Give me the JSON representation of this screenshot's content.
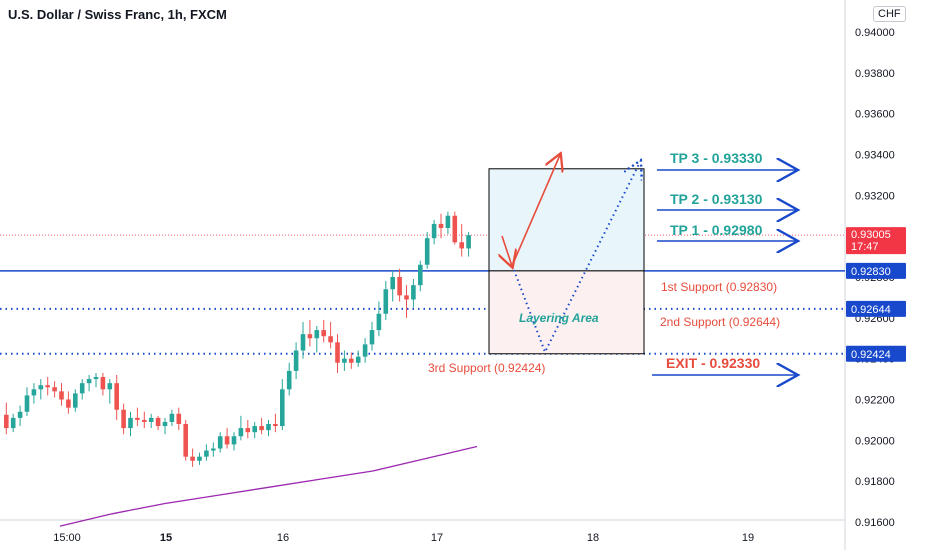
{
  "chart_data": {
    "type": "candlestick",
    "title": "U.S. Dollar / Swiss Franc, 1h, FXCM",
    "currency": "CHF",
    "ylim": [
      0.916,
      0.941
    ],
    "y_ticks": [
      "0.94000",
      "0.93800",
      "0.93600",
      "0.93400",
      "0.93200",
      "0.93000",
      "0.92800",
      "0.92600",
      "0.92400",
      "0.92200",
      "0.92000",
      "0.91800",
      "0.91600"
    ],
    "x_ticks": [
      "15:00",
      "15",
      "16",
      "17",
      "18",
      "19"
    ],
    "price": {
      "label": "0.93005",
      "countdown": "17:47",
      "value": 0.93005
    },
    "levels": [
      {
        "value": 0.9283,
        "label": "0.92830",
        "style": "solid"
      },
      {
        "value": 0.92644,
        "label": "0.92644",
        "style": "dotted"
      },
      {
        "value": 0.92424,
        "label": "0.92424",
        "style": "dotted"
      }
    ],
    "annotations": {
      "tp3": "TP 3 - 0.93330",
      "tp2": "TP 2 - 0.93130",
      "tp1": "TP 1 - 0.92980",
      "exit": "EXIT - 0.92330",
      "support1": "1st Support (0.92830)",
      "support2": "2nd Support (0.92644)",
      "support3": "3rd Support  (0.92424)",
      "layering": "Layering Area"
    },
    "moving_average": [
      0.9158,
      0.9164,
      0.9169,
      0.9173,
      0.9177,
      0.9181,
      0.9185,
      0.9191,
      0.9197
    ],
    "candles": [
      [
        0.92125,
        0.92185,
        0.9203,
        0.9206
      ],
      [
        0.9206,
        0.9213,
        0.9204,
        0.9211
      ],
      [
        0.9211,
        0.9217,
        0.9207,
        0.9214
      ],
      [
        0.9214,
        0.9226,
        0.9212,
        0.9222
      ],
      [
        0.9222,
        0.9228,
        0.9218,
        0.9225
      ],
      [
        0.9225,
        0.923,
        0.922,
        0.9227
      ],
      [
        0.9227,
        0.9231,
        0.9222,
        0.9226
      ],
      [
        0.9226,
        0.9229,
        0.9221,
        0.9224
      ],
      [
        0.9224,
        0.9228,
        0.9217,
        0.922
      ],
      [
        0.922,
        0.9224,
        0.9213,
        0.9216
      ],
      [
        0.9216,
        0.9225,
        0.9214,
        0.9223
      ],
      [
        0.9223,
        0.923,
        0.922,
        0.9228
      ],
      [
        0.9228,
        0.9232,
        0.9224,
        0.923
      ],
      [
        0.923,
        0.9233,
        0.9226,
        0.9231
      ],
      [
        0.9231,
        0.9233,
        0.9222,
        0.9225
      ],
      [
        0.9225,
        0.923,
        0.9218,
        0.9228
      ],
      [
        0.9228,
        0.9232,
        0.921,
        0.9215
      ],
      [
        0.9215,
        0.9218,
        0.9203,
        0.9206
      ],
      [
        0.9206,
        0.9214,
        0.9202,
        0.9211
      ],
      [
        0.9211,
        0.9216,
        0.9207,
        0.921
      ],
      [
        0.921,
        0.9214,
        0.9206,
        0.9209
      ],
      [
        0.9209,
        0.9213,
        0.9206,
        0.9211
      ],
      [
        0.9211,
        0.9212,
        0.9205,
        0.9207
      ],
      [
        0.9207,
        0.9211,
        0.9203,
        0.9209
      ],
      [
        0.9209,
        0.9215,
        0.9207,
        0.9213
      ],
      [
        0.9213,
        0.9216,
        0.9205,
        0.9208
      ],
      [
        0.9208,
        0.921,
        0.919,
        0.9192
      ],
      [
        0.9192,
        0.9196,
        0.9187,
        0.919
      ],
      [
        0.919,
        0.9194,
        0.9188,
        0.9192
      ],
      [
        0.9192,
        0.9198,
        0.919,
        0.9195
      ],
      [
        0.9195,
        0.9199,
        0.9192,
        0.9196
      ],
      [
        0.9196,
        0.9204,
        0.9194,
        0.9202
      ],
      [
        0.9202,
        0.9206,
        0.9196,
        0.9198
      ],
      [
        0.9198,
        0.9204,
        0.9195,
        0.9202
      ],
      [
        0.9202,
        0.9212,
        0.92,
        0.9206
      ],
      [
        0.9206,
        0.921,
        0.9201,
        0.9204
      ],
      [
        0.9204,
        0.9209,
        0.9201,
        0.9207
      ],
      [
        0.9207,
        0.9211,
        0.9203,
        0.9205
      ],
      [
        0.9205,
        0.921,
        0.9202,
        0.9208
      ],
      [
        0.9208,
        0.9213,
        0.9204,
        0.9207
      ],
      [
        0.9207,
        0.923,
        0.9205,
        0.9225
      ],
      [
        0.9225,
        0.9238,
        0.9222,
        0.9234
      ],
      [
        0.9234,
        0.9248,
        0.923,
        0.9244
      ],
      [
        0.9244,
        0.9258,
        0.924,
        0.9252
      ],
      [
        0.9252,
        0.9259,
        0.9246,
        0.925
      ],
      [
        0.925,
        0.9256,
        0.9243,
        0.9254
      ],
      [
        0.9254,
        0.9259,
        0.9248,
        0.9251
      ],
      [
        0.9251,
        0.9258,
        0.9245,
        0.9248
      ],
      [
        0.9248,
        0.9252,
        0.9233,
        0.9238
      ],
      [
        0.9238,
        0.9244,
        0.9234,
        0.924
      ],
      [
        0.924,
        0.9243,
        0.9235,
        0.9238
      ],
      [
        0.9238,
        0.9244,
        0.9236,
        0.9241
      ],
      [
        0.9241,
        0.925,
        0.9238,
        0.9247
      ],
      [
        0.9247,
        0.9258,
        0.9244,
        0.9254
      ],
      [
        0.9254,
        0.9268,
        0.9251,
        0.9262
      ],
      [
        0.9262,
        0.9278,
        0.9259,
        0.9274
      ],
      [
        0.9274,
        0.9283,
        0.9268,
        0.928
      ],
      [
        0.928,
        0.9284,
        0.9268,
        0.9271
      ],
      [
        0.9271,
        0.9276,
        0.926,
        0.9269
      ],
      [
        0.9269,
        0.9279,
        0.9265,
        0.9276
      ],
      [
        0.9276,
        0.9288,
        0.9273,
        0.9286
      ],
      [
        0.9286,
        0.9302,
        0.9284,
        0.9299
      ],
      [
        0.9299,
        0.9308,
        0.9296,
        0.9306
      ],
      [
        0.9306,
        0.9311,
        0.9299,
        0.9304
      ],
      [
        0.9304,
        0.9312,
        0.9301,
        0.931
      ],
      [
        0.931,
        0.9312,
        0.9296,
        0.9297
      ],
      [
        0.9297,
        0.9306,
        0.929,
        0.9294
      ],
      [
        0.9294,
        0.9302,
        0.929,
        0.93005
      ]
    ]
  }
}
